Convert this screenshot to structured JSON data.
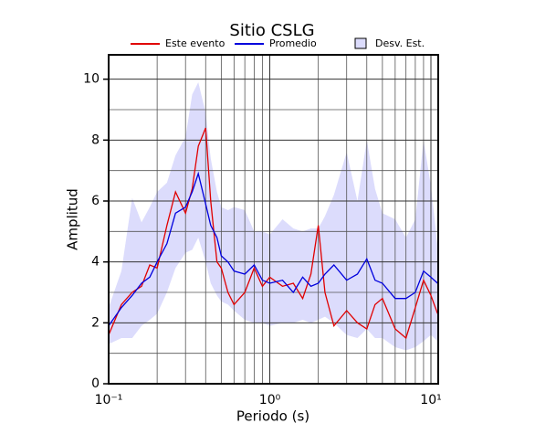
{
  "chart_data": {
    "type": "line",
    "title": "Sitio CSLG",
    "xlabel": "Periodo (s)",
    "ylabel": "Amplitud",
    "xscale": "log",
    "xlim": [
      0.1,
      11.1
    ],
    "ylim": [
      0,
      10.8
    ],
    "xticks": [
      {
        "value": 0.1,
        "label": "10⁻¹"
      },
      {
        "value": 1,
        "label": "10⁰"
      },
      {
        "value": 10,
        "label": "10¹"
      }
    ],
    "xminorticks": [
      0.2,
      0.3,
      0.4,
      0.5,
      0.6,
      0.7,
      0.8,
      0.9,
      2,
      3,
      4,
      5,
      6,
      7,
      8,
      9
    ],
    "yticks": [
      0,
      2,
      4,
      6,
      8,
      10
    ],
    "yminorticks": [
      1,
      3,
      5,
      7,
      9
    ],
    "grid": true,
    "x": [
      0.1,
      0.12,
      0.14,
      0.16,
      0.18,
      0.2,
      0.23,
      0.26,
      0.3,
      0.33,
      0.36,
      0.4,
      0.43,
      0.47,
      0.5,
      0.55,
      0.6,
      0.7,
      0.8,
      0.9,
      1.0,
      1.2,
      1.4,
      1.6,
      1.8,
      2.0,
      2.2,
      2.5,
      3.0,
      3.5,
      4.0,
      4.5,
      5.0,
      6.0,
      7.0,
      8.0,
      9.0,
      10.0,
      11.0
    ],
    "series": [
      {
        "name": "Este evento",
        "color": "#e00000",
        "values": [
          1.6,
          2.6,
          3.0,
          3.2,
          3.9,
          3.8,
          5.2,
          6.3,
          5.6,
          6.4,
          7.8,
          8.4,
          6.0,
          4.0,
          3.8,
          3.0,
          2.6,
          3.0,
          3.8,
          3.2,
          3.5,
          3.2,
          3.3,
          2.8,
          3.6,
          5.2,
          3.0,
          1.9,
          2.4,
          2.0,
          1.8,
          2.6,
          2.8,
          1.8,
          1.5,
          2.5,
          3.4,
          2.9,
          2.3
        ]
      },
      {
        "name": "Promedio",
        "color": "#0000dd",
        "values": [
          1.9,
          2.5,
          2.9,
          3.3,
          3.5,
          4.0,
          4.6,
          5.6,
          5.8,
          6.3,
          6.9,
          5.9,
          5.2,
          4.8,
          4.2,
          4.0,
          3.7,
          3.6,
          3.9,
          3.4,
          3.3,
          3.4,
          3.0,
          3.5,
          3.2,
          3.3,
          3.6,
          3.9,
          3.4,
          3.6,
          4.1,
          3.4,
          3.3,
          2.8,
          2.8,
          3.0,
          3.7,
          3.5,
          3.3
        ]
      },
      {
        "name": "Desv. Est.",
        "color": "#dcdcfc",
        "type": "band",
        "upper": [
          2.5,
          3.7,
          6.1,
          5.3,
          5.8,
          6.3,
          6.6,
          7.5,
          8.1,
          9.5,
          9.9,
          8.9,
          7.4,
          6.3,
          5.8,
          5.7,
          5.8,
          5.7,
          5.0,
          5.0,
          4.9,
          5.4,
          5.1,
          5.0,
          5.1,
          5.1,
          5.5,
          6.2,
          7.6,
          6.0,
          8.0,
          6.4,
          5.6,
          5.4,
          4.8,
          5.4,
          8.0,
          6.5,
          4.5
        ],
        "lower": [
          1.3,
          1.5,
          1.5,
          1.9,
          2.1,
          2.3,
          3.0,
          3.8,
          4.3,
          4.4,
          4.8,
          4.0,
          3.3,
          2.9,
          2.7,
          2.6,
          2.4,
          2.1,
          2.0,
          2.0,
          1.9,
          2.0,
          2.0,
          2.1,
          2.0,
          2.1,
          2.2,
          2.0,
          1.6,
          1.5,
          1.8,
          1.5,
          1.5,
          1.2,
          1.1,
          1.2,
          1.4,
          1.6,
          1.4
        ]
      }
    ]
  }
}
